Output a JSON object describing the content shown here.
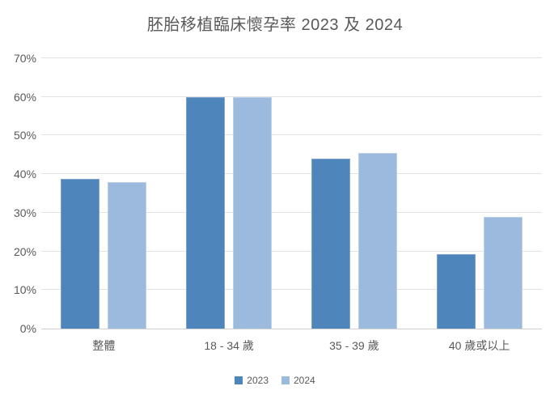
{
  "title": "胚胎移植臨床懷孕率 2023 及 2024",
  "colors": {
    "series_2023": "#4e86bc",
    "series_2023_border": "#7fa3cc",
    "series_2024": "#9cbade",
    "series_2024_border": "#bcd0e9",
    "gridline": "#e2e2e2",
    "axis_line": "#d0d0d0",
    "text": "#595959"
  },
  "chart_data": {
    "type": "bar",
    "title": "胚胎移植臨床懷孕率 2023 及 2024",
    "categories": [
      "整體",
      "18 - 34 歲",
      "35 - 39 歲",
      "40 歲或以上"
    ],
    "series": [
      {
        "name": "2023",
        "color": "#4e86bc",
        "border": "#7fa3cc",
        "values": [
          38.7,
          60,
          44,
          19.2
        ]
      },
      {
        "name": "2024",
        "color": "#9cbade",
        "border": "#bcd0e9",
        "values": [
          38,
          60,
          45.4,
          29
        ]
      }
    ],
    "ylabel": "",
    "xlabel": "",
    "ylim": [
      0,
      70
    ],
    "ytick_step": 10,
    "ytick_labels": [
      "0%",
      "10%",
      "20%",
      "30%",
      "40%",
      "50%",
      "60%",
      "70%"
    ],
    "grid": true,
    "legend_position": "bottom",
    "legend_entries": [
      "2023",
      "2024"
    ]
  }
}
